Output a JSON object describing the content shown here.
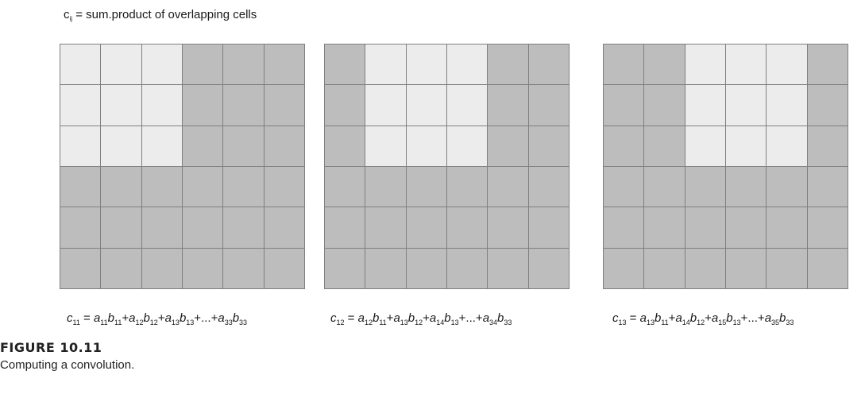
{
  "header": {
    "var": "c",
    "sub": "ij",
    "rest": " = sum.product of overlapping cells"
  },
  "colors": {
    "light": "#ececec",
    "dark": "#bdbdbd",
    "line": "#7f7f7f"
  },
  "grid_size": 6,
  "kernel_size": 3,
  "grids": [
    {
      "kernel_col": 0,
      "formula": {
        "lhs": {
          "v": "c",
          "s": "11"
        },
        "terms": [
          [
            {
              "v": "a",
              "s": "11"
            },
            {
              "v": "b",
              "s": "11"
            }
          ],
          [
            {
              "v": "a",
              "s": "12"
            },
            {
              "v": "b",
              "s": "12"
            }
          ],
          [
            {
              "v": "a",
              "s": "13"
            },
            {
              "v": "b",
              "s": "13"
            }
          ]
        ],
        "ellipsis": "...",
        "last": [
          {
            "v": "a",
            "s": "33"
          },
          {
            "v": "b",
            "s": "33"
          }
        ]
      }
    },
    {
      "kernel_col": 1,
      "formula": {
        "lhs": {
          "v": "c",
          "s": "12"
        },
        "terms": [
          [
            {
              "v": "a",
              "s": "12"
            },
            {
              "v": "b",
              "s": "11"
            }
          ],
          [
            {
              "v": "a",
              "s": "13"
            },
            {
              "v": "b",
              "s": "12"
            }
          ],
          [
            {
              "v": "a",
              "s": "14"
            },
            {
              "v": "b",
              "s": "13"
            }
          ]
        ],
        "ellipsis": "...",
        "last": [
          {
            "v": "a",
            "s": "34"
          },
          {
            "v": "b",
            "s": "33"
          }
        ]
      }
    },
    {
      "kernel_col": 2,
      "formula": {
        "lhs": {
          "v": "c",
          "s": "13"
        },
        "terms": [
          [
            {
              "v": "a",
              "s": "13"
            },
            {
              "v": "b",
              "s": "11"
            }
          ],
          [
            {
              "v": "a",
              "s": "14"
            },
            {
              "v": "b",
              "s": "12"
            }
          ],
          [
            {
              "v": "a",
              "s": "15"
            },
            {
              "v": "b",
              "s": "13"
            }
          ]
        ],
        "ellipsis": "...",
        "last": [
          {
            "v": "a",
            "s": "35"
          },
          {
            "v": "b",
            "s": "33"
          }
        ]
      }
    }
  ],
  "figure": {
    "label": "FIGURE 10.11",
    "caption": "Computing a convolution."
  }
}
